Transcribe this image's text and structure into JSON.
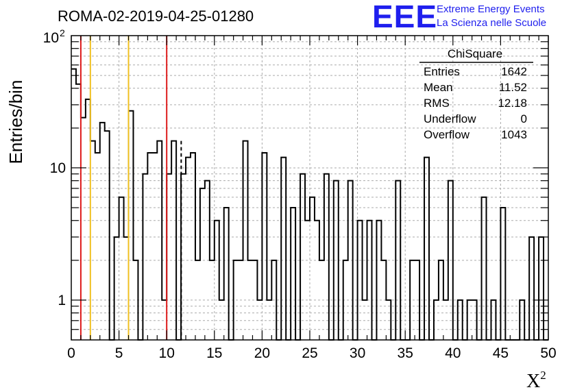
{
  "chart_data": {
    "type": "histogram",
    "title": "ROMA-02-2019-04-25-01280",
    "xlabel": "X",
    "xlabel_superscript": "2",
    "ylabel": "Entries/bin",
    "xlim": [
      0,
      50
    ],
    "ylim": [
      0.5,
      100
    ],
    "y_scale": "log",
    "grid": true,
    "bin_width": 0.5,
    "x_ticks": [
      "0",
      "5",
      "10",
      "15",
      "20",
      "25",
      "30",
      "35",
      "40",
      "45",
      "50"
    ],
    "y_ticks": {
      "1": "1",
      "10": "10",
      "100": "10",
      "100_exponent": "2"
    },
    "bin_contents": [
      56,
      43,
      24,
      33,
      16,
      13,
      22,
      19,
      0,
      3,
      6,
      3,
      27,
      2,
      0,
      9,
      13,
      13,
      16,
      1,
      9,
      16,
      0,
      9,
      12,
      15,
      0,
      0,
      0,
      0,
      0,
      0,
      0,
      0,
      0,
      0,
      3,
      0,
      0,
      0,
      0,
      0,
      0,
      0,
      0,
      0,
      0,
      0,
      0,
      0,
      0,
      0,
      0,
      0,
      0,
      0,
      0,
      0,
      0,
      0,
      0,
      0,
      0,
      0,
      0,
      0,
      0,
      0,
      0,
      0,
      0,
      0,
      0,
      0,
      0,
      0,
      0,
      0,
      0,
      0,
      0,
      0,
      0,
      0,
      0,
      0,
      0,
      0,
      0,
      0,
      0,
      0,
      0,
      0,
      0,
      0,
      0,
      0,
      0,
      0
    ],
    "bins_tail": [
      [
        12.5,
        13
      ],
      [
        13,
        2
      ],
      [
        13.5,
        7
      ],
      [
        14,
        8
      ],
      [
        14.5,
        2
      ],
      [
        15,
        4
      ],
      [
        15.5,
        1
      ],
      [
        16,
        5
      ],
      [
        16.5,
        0
      ],
      [
        17,
        2
      ],
      [
        17.5,
        2
      ],
      [
        18,
        16
      ],
      [
        18.5,
        2
      ],
      [
        19,
        2
      ],
      [
        19.5,
        1
      ],
      [
        20,
        13
      ],
      [
        20.5,
        1
      ],
      [
        21,
        2
      ],
      [
        21.5,
        0
      ],
      [
        22,
        12
      ],
      [
        22.5,
        0
      ],
      [
        23,
        5
      ],
      [
        23.5,
        0
      ],
      [
        24,
        9
      ],
      [
        24.5,
        4
      ],
      [
        25,
        6
      ],
      [
        25.5,
        4
      ],
      [
        26,
        2
      ],
      [
        26.5,
        9
      ],
      [
        27,
        0
      ],
      [
        27.5,
        8
      ],
      [
        28,
        0
      ],
      [
        28.5,
        2
      ],
      [
        29,
        8
      ],
      [
        29.5,
        0
      ],
      [
        30,
        4
      ],
      [
        30.5,
        1
      ],
      [
        31,
        4
      ],
      [
        31.5,
        0
      ],
      [
        32,
        4
      ],
      [
        32.5,
        2
      ],
      [
        33,
        1
      ],
      [
        33.5,
        0
      ],
      [
        34,
        8
      ],
      [
        34.5,
        0
      ],
      [
        35,
        0
      ],
      [
        35.5,
        2
      ],
      [
        36,
        2
      ],
      [
        36.5,
        0
      ],
      [
        37,
        12
      ],
      [
        37.5,
        0
      ],
      [
        38,
        1
      ],
      [
        38.5,
        2
      ],
      [
        39,
        1
      ],
      [
        39.5,
        8
      ],
      [
        40,
        0
      ],
      [
        40.5,
        1
      ],
      [
        41,
        0
      ],
      [
        41.5,
        1
      ],
      [
        42,
        1
      ],
      [
        42.5,
        0
      ],
      [
        43,
        6
      ],
      [
        43.5,
        0
      ],
      [
        44,
        1
      ],
      [
        44.5,
        0
      ],
      [
        45,
        5
      ],
      [
        45.5,
        0
      ],
      [
        46,
        0
      ],
      [
        46.5,
        0
      ],
      [
        47,
        1
      ],
      [
        47.5,
        0
      ],
      [
        48,
        3
      ],
      [
        48.5,
        0
      ],
      [
        49,
        3
      ],
      [
        49.5,
        0
      ]
    ],
    "vertical_lines": [
      {
        "x": 1,
        "color": "#dd1a1a",
        "style": "solid"
      },
      {
        "x": 2,
        "color": "#f0c020",
        "style": "solid"
      },
      {
        "x": 6,
        "color": "#f0c020",
        "style": "solid"
      },
      {
        "x": 10,
        "color": "#dd1a1a",
        "style": "solid"
      },
      {
        "x": 11.52,
        "color": "#000000",
        "style": "dashed"
      }
    ],
    "stats_box": {
      "title": "ChiSquare",
      "rows": [
        {
          "label": "Entries",
          "value": "1642"
        },
        {
          "label": "Mean",
          "value": "11.52"
        },
        {
          "label": "RMS",
          "value": "12.18"
        },
        {
          "label": "Underflow",
          "value": "0"
        },
        {
          "label": "Overflow",
          "value": "1043"
        }
      ]
    }
  },
  "logo": {
    "mark": "EEE",
    "line1": "Extreme Energy Events",
    "line2": "La Scienza nelle Scuole"
  },
  "colors": {
    "logo_blue": "#1f1fee",
    "grid": "#aaaaaa",
    "histogram": "#000000"
  }
}
